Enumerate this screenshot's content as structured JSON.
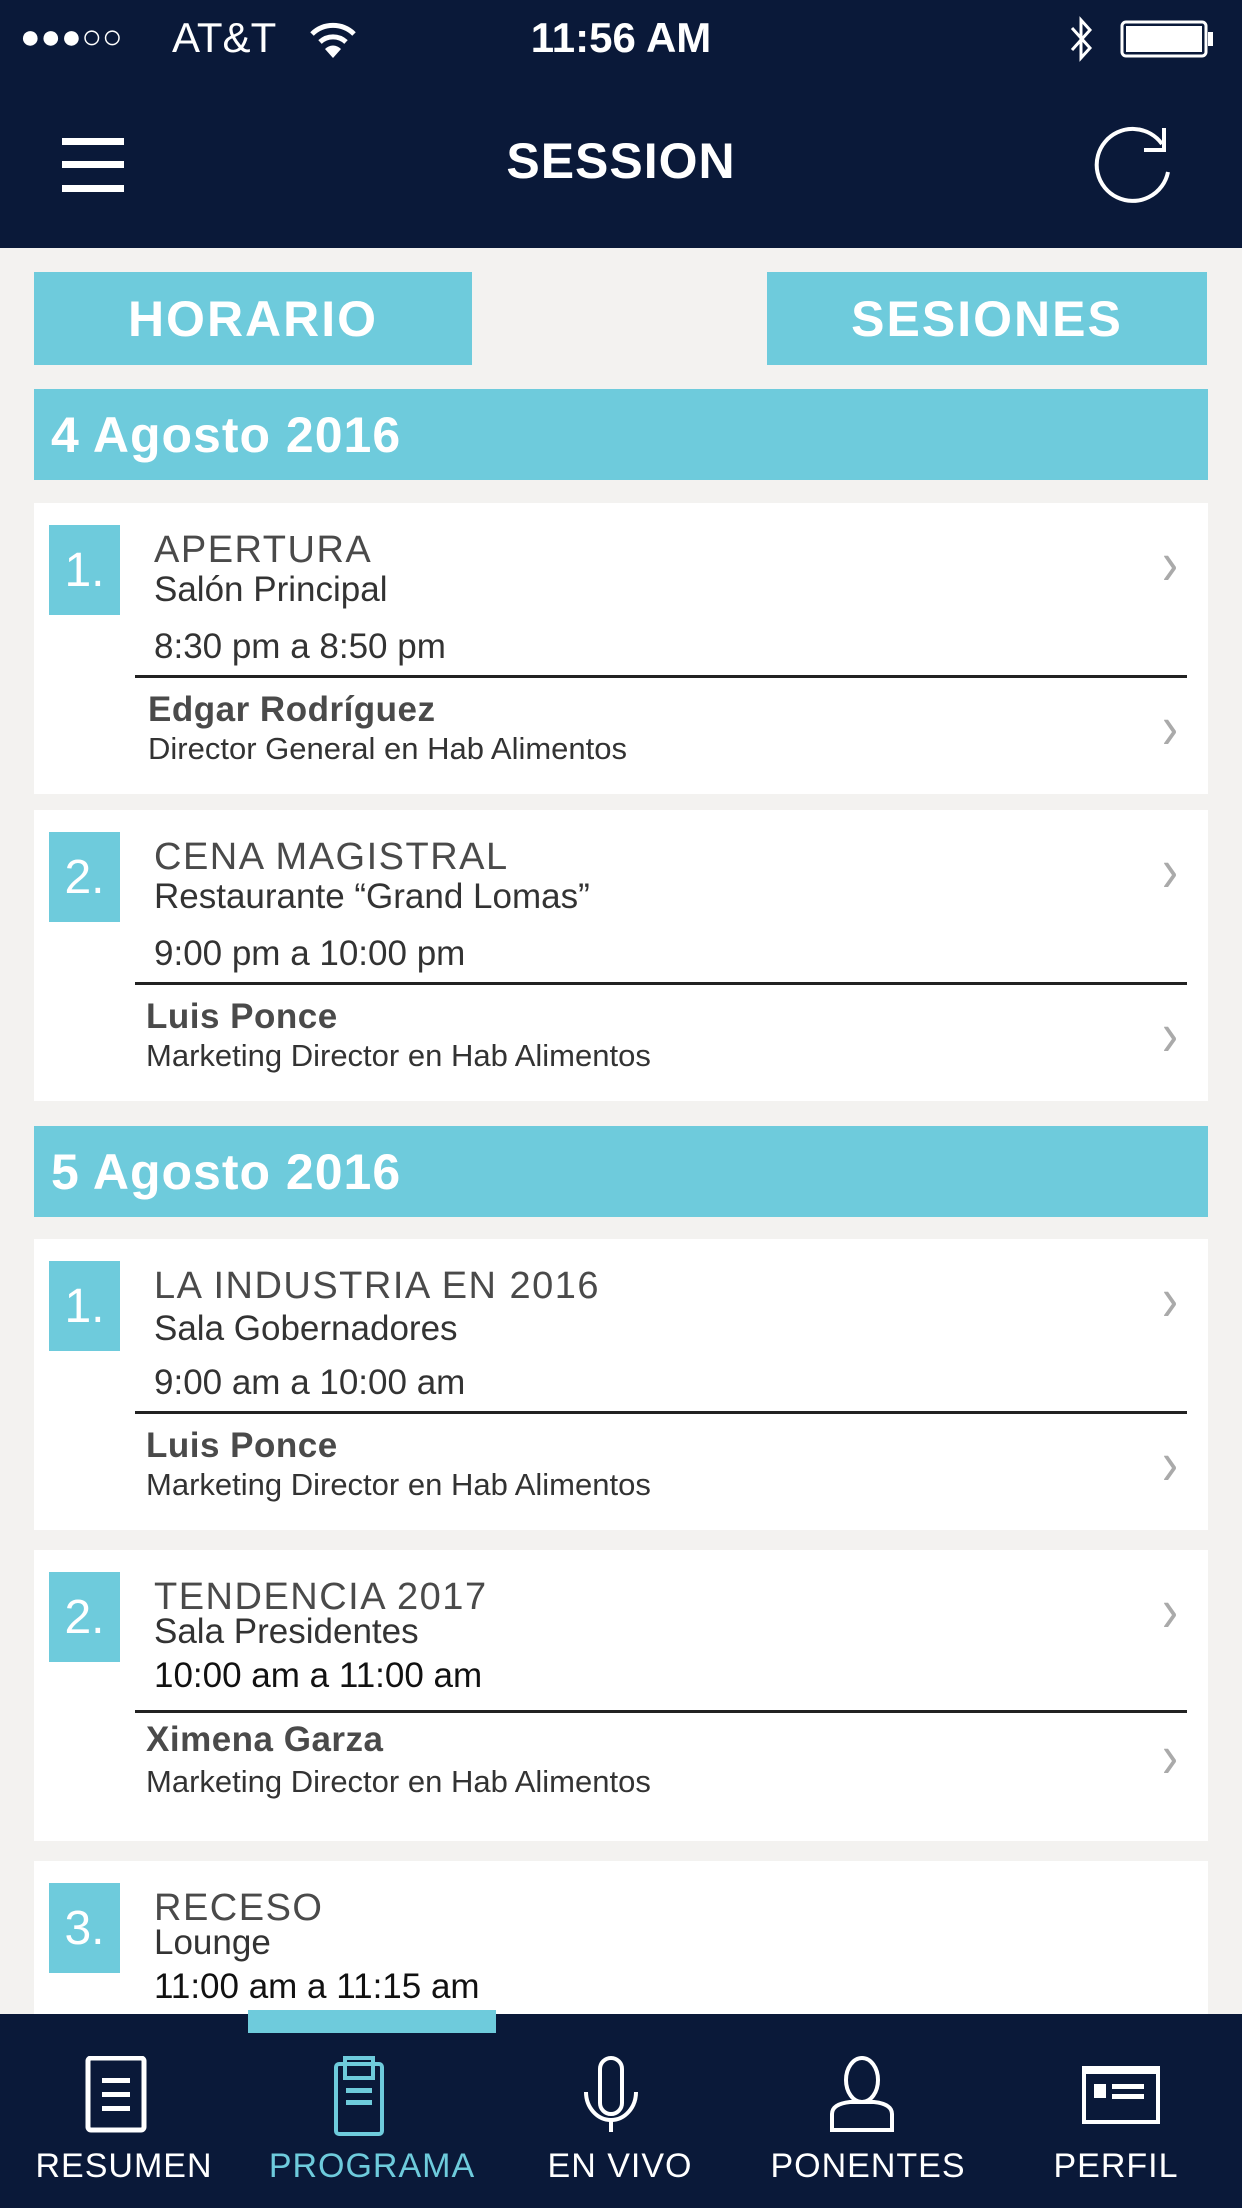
{
  "status_bar": {
    "signal": "●●●○○",
    "carrier": "AT&T",
    "time": "11:56 AM"
  },
  "header": {
    "title": "SESSION"
  },
  "toggle": {
    "horario": "HORARIO",
    "sesiones": "SESIONES"
  },
  "days": [
    {
      "date": "4 Agosto 2016",
      "sessions": [
        {
          "num": "1.",
          "title": "APERTURA",
          "room": "Salón Principal",
          "time": "8:30 pm a 8:50 pm",
          "speaker": "Edgar Rodríguez",
          "role": "Director General en Hab Alimentos"
        },
        {
          "num": "2.",
          "title": "CENA MAGISTRAL",
          "room": "Restaurante “Grand Lomas”",
          "time": "9:00 pm a 10:00 pm",
          "speaker": "Luis Ponce",
          "role": "Marketing Director en Hab Alimentos"
        }
      ]
    },
    {
      "date": "5 Agosto 2016",
      "sessions": [
        {
          "num": "1.",
          "title": "LA INDUSTRIA EN 2016",
          "room": "Sala Gobernadores",
          "time": "9:00 am a 10:00 am",
          "speaker": "Luis Ponce",
          "role": "Marketing Director en Hab Alimentos"
        },
        {
          "num": "2.",
          "title": "TENDENCIA 2017",
          "room": "Sala Presidentes",
          "time": "10:00 am a 11:00 am",
          "speaker": "Ximena Garza",
          "role": "Marketing Director en Hab Alimentos"
        },
        {
          "num": "3.",
          "title": "RECESO",
          "room": "Lounge",
          "time": "11:00 am a 11:15 am"
        }
      ]
    }
  ],
  "tabs": [
    {
      "label": "RESUMEN",
      "icon": "document-icon"
    },
    {
      "label": "PROGRAMA",
      "icon": "clipboard-icon",
      "active": true
    },
    {
      "label": "EN VIVO",
      "icon": "microphone-icon"
    },
    {
      "label": "PONENTES",
      "icon": "person-icon"
    },
    {
      "label": "PERFIL",
      "icon": "id-card-icon"
    }
  ],
  "colors": {
    "navy": "#0a1939",
    "accent": "#6ecbdc",
    "background": "#f3f2f0"
  }
}
